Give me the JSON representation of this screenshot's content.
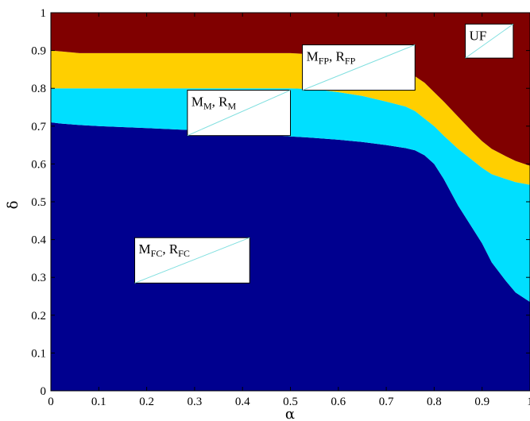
{
  "chart_data": {
    "type": "area",
    "xlabel": "α",
    "ylabel": "δ",
    "xlim": [
      0,
      1
    ],
    "ylim": [
      0,
      1
    ],
    "xticks": [
      "0",
      "0.1",
      "0.2",
      "0.3",
      "0.4",
      "0.5",
      "0.6",
      "0.7",
      "0.8",
      "0.9",
      "1"
    ],
    "yticks": [
      "0",
      "0.1",
      "0.2",
      "0.3",
      "0.4",
      "0.5",
      "0.6",
      "0.7",
      "0.8",
      "0.9",
      "1"
    ],
    "grid": false,
    "x": [
      0,
      0.02,
      0.06,
      0.1,
      0.2,
      0.3,
      0.4,
      0.5,
      0.55,
      0.6,
      0.65,
      0.7,
      0.74,
      0.76,
      0.78,
      0.8,
      0.82,
      0.85,
      0.88,
      0.9,
      0.92,
      0.95,
      0.97,
      1.0
    ],
    "boundaries": [
      {
        "name": "MFC/MM",
        "y": [
          0.71,
          0.707,
          0.703,
          0.7,
          0.695,
          0.689,
          0.682,
          0.673,
          0.669,
          0.664,
          0.658,
          0.65,
          0.642,
          0.636,
          0.623,
          0.6,
          0.56,
          0.49,
          0.43,
          0.39,
          0.34,
          0.29,
          0.26,
          0.235
        ]
      },
      {
        "name": "MM/MFP",
        "y": [
          0.8,
          0.8,
          0.8,
          0.8,
          0.8,
          0.8,
          0.8,
          0.8,
          0.798,
          0.79,
          0.78,
          0.765,
          0.752,
          0.74,
          0.72,
          0.7,
          0.675,
          0.64,
          0.61,
          0.59,
          0.573,
          0.56,
          0.552,
          0.545
        ]
      },
      {
        "name": "MFP/UF",
        "y": [
          0.9,
          0.898,
          0.893,
          0.893,
          0.893,
          0.893,
          0.893,
          0.893,
          0.89,
          0.88,
          0.87,
          0.855,
          0.842,
          0.832,
          0.815,
          0.79,
          0.765,
          0.725,
          0.685,
          0.66,
          0.64,
          0.62,
          0.608,
          0.595
        ]
      }
    ],
    "regions": [
      {
        "label_main": "M",
        "label_sub": "FC",
        "label_main2": "R",
        "label_sub2": "FC",
        "color": "#00008f"
      },
      {
        "label_main": "M",
        "label_sub": "M",
        "label_main2": "R",
        "label_sub2": "M",
        "color": "#00dfff"
      },
      {
        "label_main": "M",
        "label_sub": "FP",
        "label_main2": "R",
        "label_sub2": "FP",
        "color": "#ffcf00"
      },
      {
        "label_main": "UF",
        "label_sub": "",
        "label_main2": "",
        "label_sub2": "",
        "color": "#800000"
      }
    ]
  }
}
